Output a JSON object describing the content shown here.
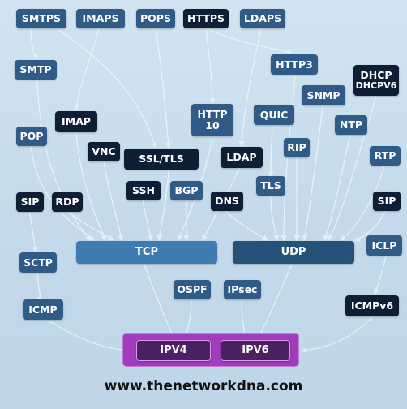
{
  "top": {
    "smtps": "SMTPS",
    "imaps": "IMAPS",
    "pops": "POPS",
    "https": "HTTPS",
    "ldaps": "LDAPS"
  },
  "app": {
    "smtp": "SMTP",
    "http3": "HTTP3",
    "dhcp_line1": "DHCP",
    "dhcp_line2": "DHCPV6",
    "imap": "IMAP",
    "http10_line1": "HTTP",
    "http10_line2": "10",
    "quic": "QUIC",
    "snmp": "SNMP",
    "ntp": "NTP",
    "pop": "POP",
    "vnc": "VNC",
    "ssl_tls": "SSL/TLS",
    "ldap": "LDAP",
    "rip": "RIP",
    "rtp": "RTP",
    "ssh": "SSH",
    "bgp": "BGP",
    "tls": "TLS",
    "sip_left": "SIP",
    "rdp": "RDP",
    "dns": "DNS",
    "sip_right": "SIP"
  },
  "transport": {
    "tcp": "TCP",
    "udp": "UDP",
    "iclp": "ICLP",
    "sctp": "SCTP"
  },
  "network": {
    "ospf": "OSPF",
    "ipsec": "IPsec",
    "icmp": "ICMP",
    "icmpv6": "ICMPv6",
    "ipv4": "IPV4",
    "ipv6": "IPV6"
  },
  "footer": {
    "url": "www.thenetworkdna.com"
  }
}
